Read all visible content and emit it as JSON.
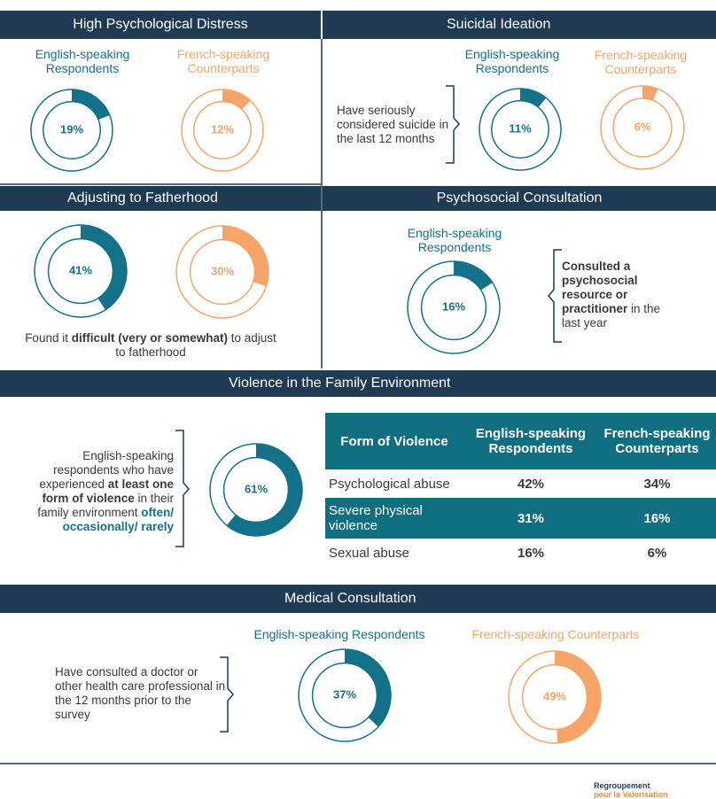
{
  "distress": {
    "title": "High Psychological Distress",
    "english": {
      "label": "English-speaking Respondents",
      "value": 19,
      "value_label": "19%",
      "color": "#13718a"
    },
    "french": {
      "label": "French-speaking Counterparts",
      "value": 12,
      "value_label": "12%",
      "color": "#f7a468"
    }
  },
  "suicidal": {
    "title": "Suicidal Ideation",
    "note": [
      {
        "text": "Have seriously considered suicide in the last 12 months"
      }
    ],
    "english": {
      "label": "English-speaking Respondents",
      "value": 11,
      "value_label": "11%",
      "color": "#13718a"
    },
    "french": {
      "label": "French-speaking Counterparts",
      "value": 6,
      "value_label": "6%",
      "color": "#f7a468"
    }
  },
  "fatherhood": {
    "title": "Adjusting to Fatherhood",
    "english": {
      "value": 41,
      "value_label": "41%",
      "color": "#13718a"
    },
    "french": {
      "value": 30,
      "value_label": "30%",
      "color": "#f7a468"
    },
    "note": [
      {
        "text": "Found it "
      },
      {
        "text": "difficult (very or somewhat)",
        "bold": true
      },
      {
        "text": " to adjust to fatherhood"
      }
    ]
  },
  "psychosocial": {
    "title": "Psychosocial Consultation",
    "english": {
      "label": "English-speaking Respondents",
      "value": 16,
      "value_label": "16%",
      "color": "#13718a"
    },
    "note": [
      {
        "text": "Consulted a psychosocial resource or practitioner",
        "bold": true
      },
      {
        "text": " in the last year"
      }
    ]
  },
  "violence": {
    "title": "Violence in the Family Environment",
    "note": [
      {
        "text": "English-speaking respondents who have experienced "
      },
      {
        "text": "at least one form of violence",
        "bold": true
      },
      {
        "text": " in their family environment "
      },
      {
        "text": "often/ occasionally/ rarely",
        "bold": true,
        "color": "#13718a"
      }
    ],
    "donut": {
      "value": 61,
      "value_label": "61%",
      "color": "#13718a"
    },
    "table": {
      "header": [
        "Form of Violence",
        "English-speaking Respondents",
        "French-speaking Counterparts"
      ],
      "rows": [
        [
          "Psychological abuse",
          "42%",
          "34%"
        ],
        [
          "Severe physical violence",
          "31%",
          "16%"
        ],
        [
          "Sexual abuse",
          "16%",
          "6%"
        ]
      ]
    }
  },
  "medical": {
    "title": "Medical Consultation",
    "note": [
      {
        "text": "Have consulted a doctor or other health care professional in the 12 months prior to the survey"
      }
    ],
    "english": {
      "label": "English-speaking Respondents",
      "value": 37,
      "value_label": "37%",
      "color": "#13718a"
    },
    "french": {
      "label": "French-speaking Counterparts",
      "value": 49,
      "value_label": "49%",
      "color": "#f7a468"
    }
  },
  "footer": {
    "logo": [
      "Regroupement",
      "pour la Valorisation"
    ]
  }
}
